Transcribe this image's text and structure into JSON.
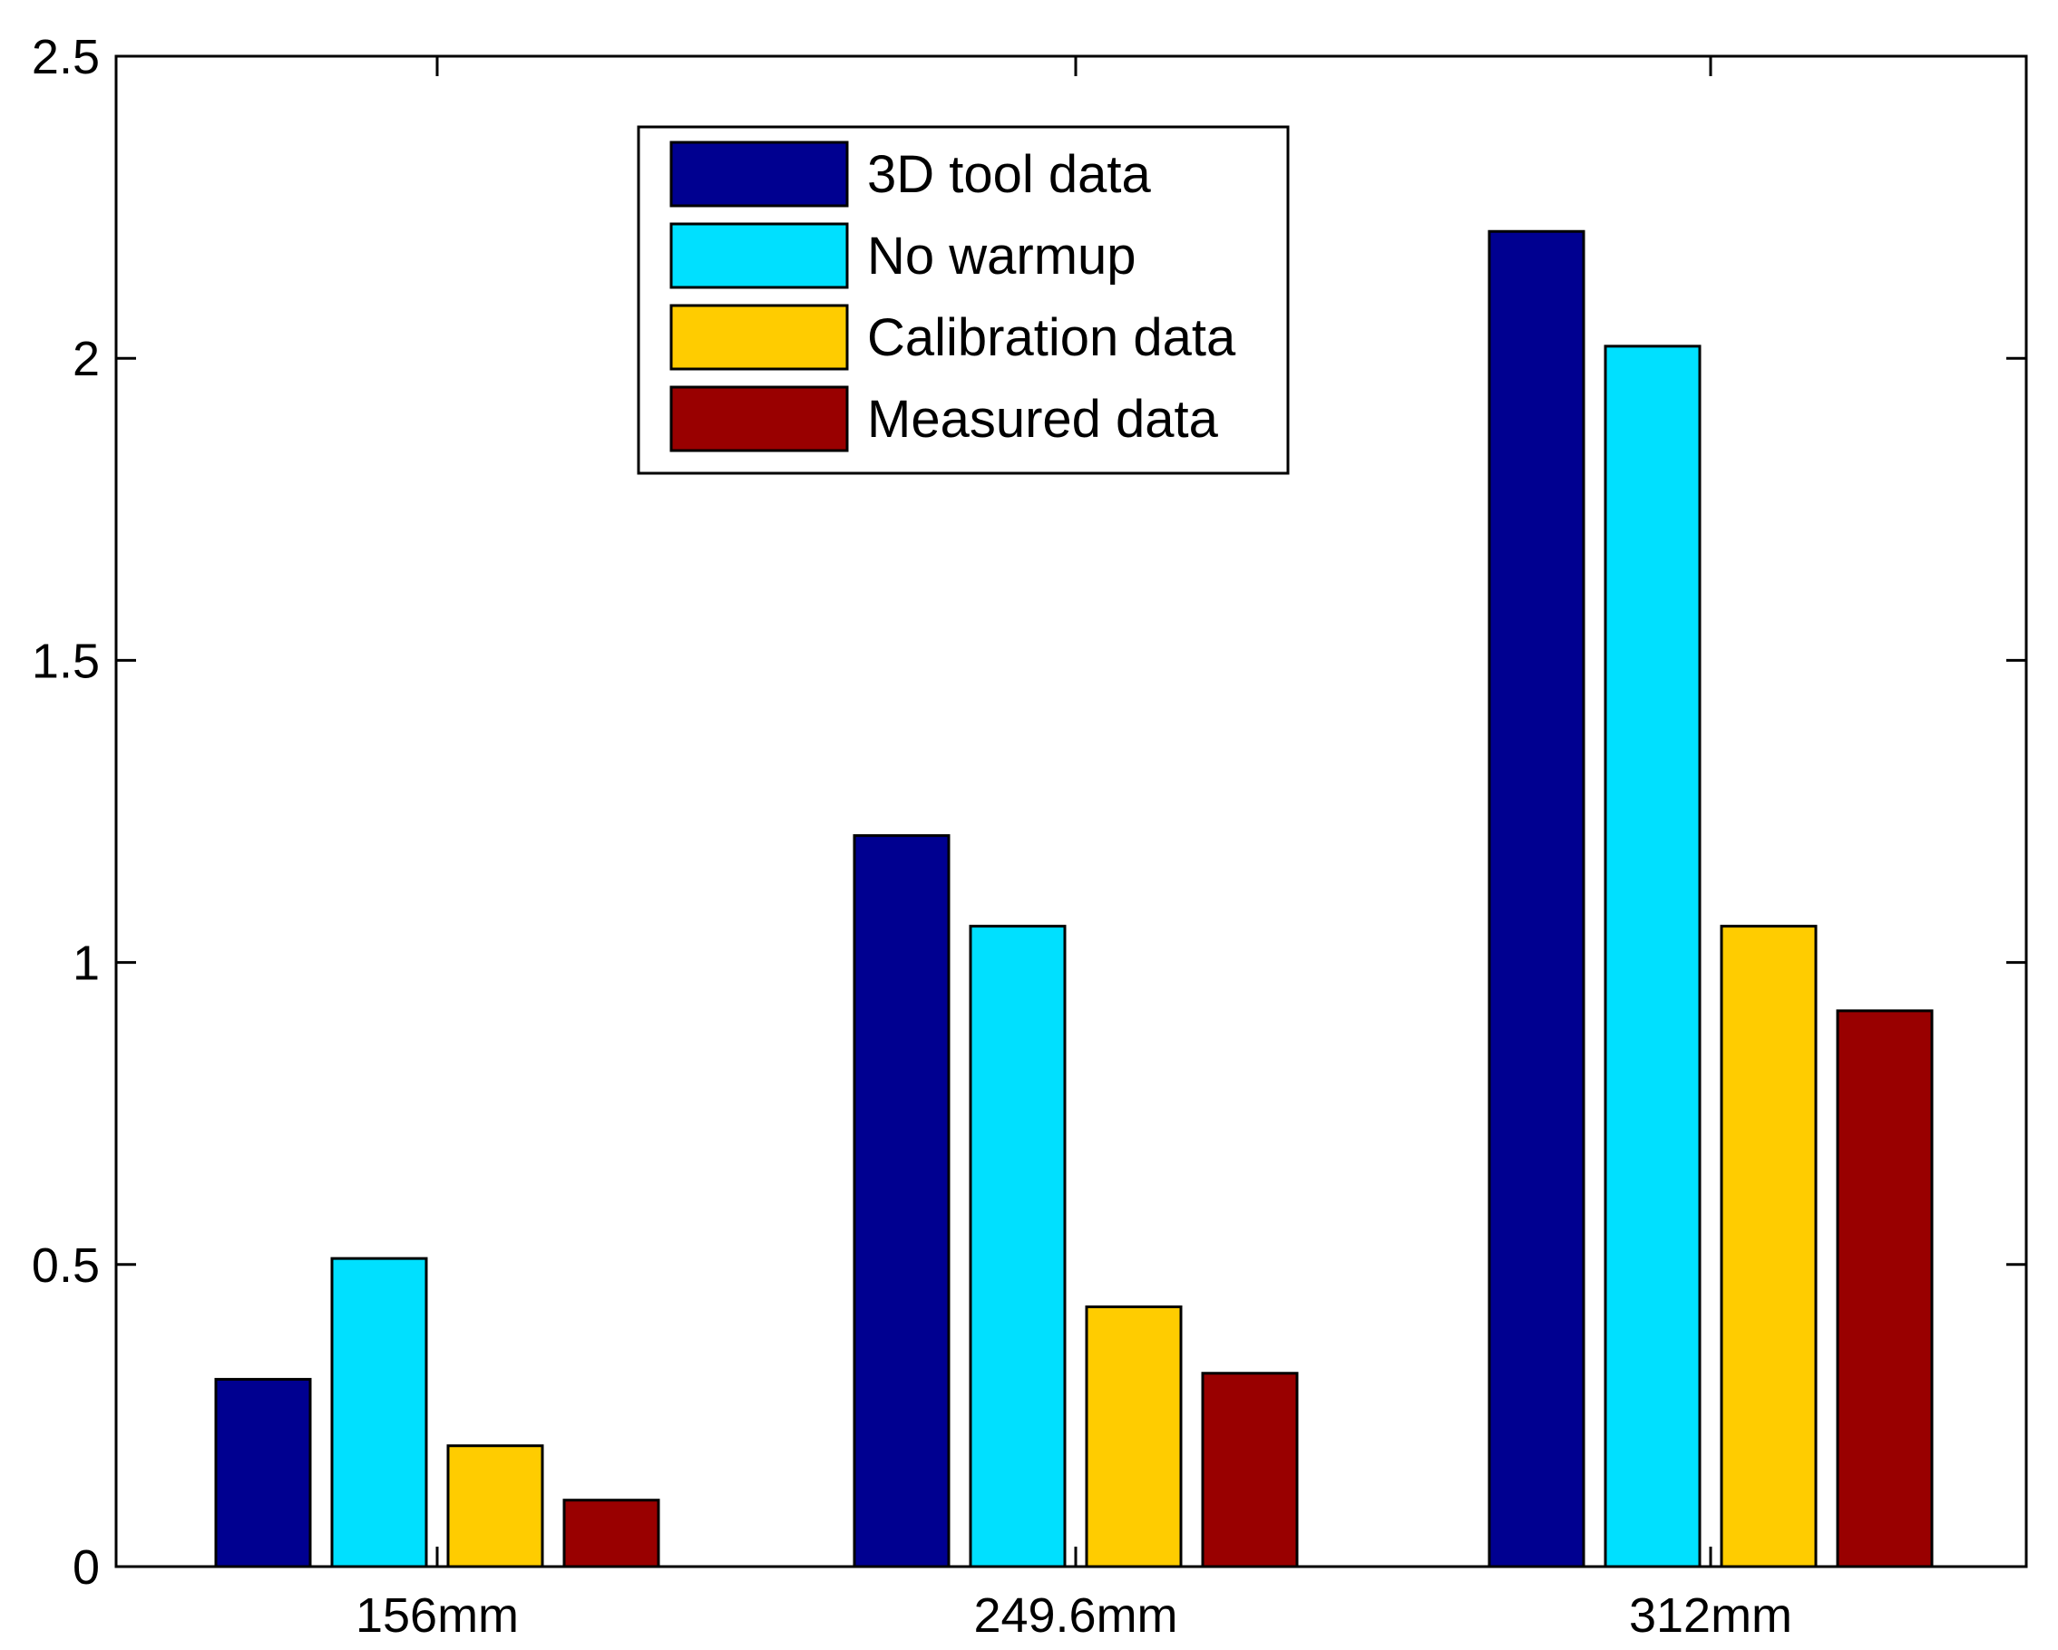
{
  "chart_data": {
    "type": "bar",
    "title": "",
    "xlabel": "",
    "ylabel": "",
    "ylim": [
      0,
      2.5
    ],
    "yticks": [
      0,
      0.5,
      1,
      1.5,
      2,
      2.5
    ],
    "ytick_labels": [
      "0",
      "0.5",
      "1",
      "1.5",
      "2",
      "2.5"
    ],
    "categories": [
      "156mm",
      "249.6mm",
      "312mm"
    ],
    "series": [
      {
        "name": "3D tool data",
        "color": "#000090",
        "values": [
          0.31,
          1.21,
          2.21
        ]
      },
      {
        "name": "No warmup",
        "color": "#00E0FF",
        "values": [
          0.51,
          1.06,
          2.02
        ]
      },
      {
        "name": "Calibration data",
        "color": "#FFCC00",
        "values": [
          0.2,
          0.43,
          1.06
        ]
      },
      {
        "name": "Measured data",
        "color": "#990000",
        "values": [
          0.11,
          0.32,
          0.92
        ]
      }
    ],
    "legend_position": "top-center",
    "grid": false
  }
}
